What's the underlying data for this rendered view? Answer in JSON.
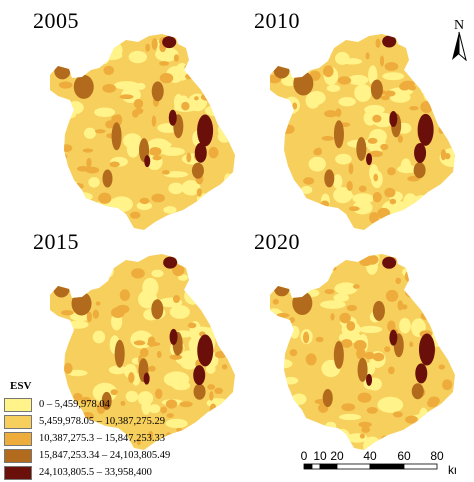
{
  "panels": [
    {
      "year": "2005"
    },
    {
      "year": "2010"
    },
    {
      "year": "2015"
    },
    {
      "year": "2020"
    }
  ],
  "north_label": "N",
  "legend": {
    "title": "ESV",
    "classes": [
      {
        "label": "0 – 5,459,978.04",
        "color": "#fff38a"
      },
      {
        "label": "5,459,978.05 – 10,387,275.29",
        "color": "#f6cf5c"
      },
      {
        "label": "10,387,275.3 – 15,847,253.33",
        "color": "#eeac3c"
      },
      {
        "label": "15,847,253.34 – 24,103,805.49",
        "color": "#b26a1c"
      },
      {
        "label": "24,103,805.5 – 33,958,400",
        "color": "#6b0f0a"
      }
    ]
  },
  "scale_bar": {
    "ticks": [
      "0",
      "10",
      "20",
      "40",
      "60",
      "80"
    ],
    "unit": "km"
  }
}
